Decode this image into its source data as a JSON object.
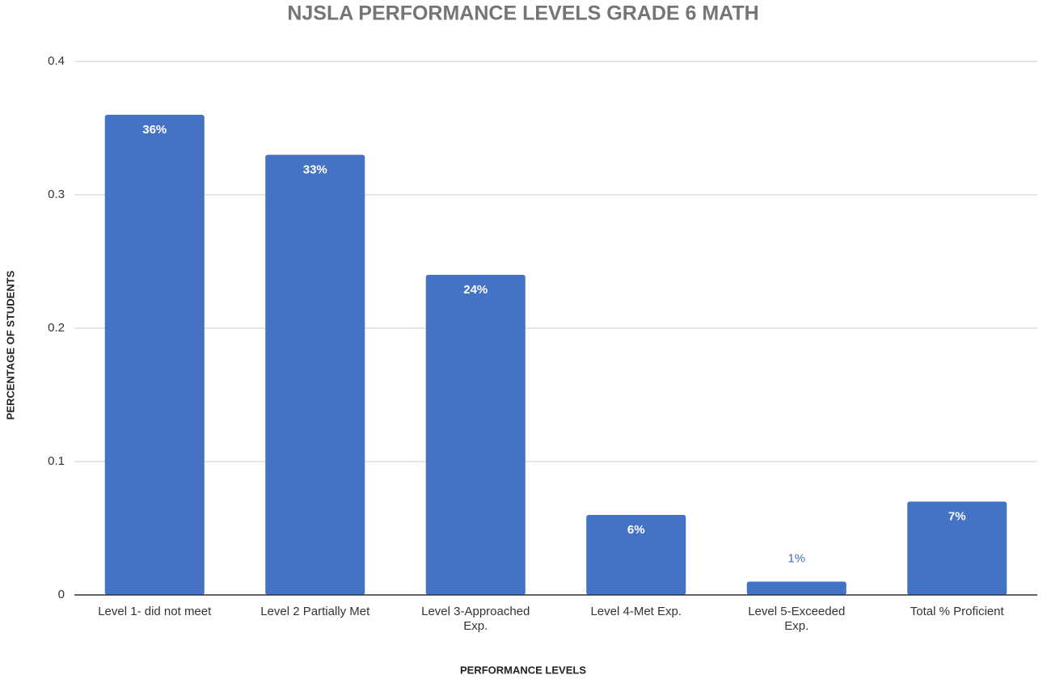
{
  "chart_data": {
    "type": "bar",
    "title": "NJSLA PERFORMANCE LEVELS GRADE 6 MATH",
    "x_label": "PERFORMANCE LEVELS",
    "y_label": "PERCENTAGE OF STUDENTS",
    "categories": [
      "Level 1- did not meet",
      "Level 2 Partially Met",
      "Level 3-Approached Exp.",
      "Level 4-Met Exp.",
      "Level 5-Exceeded Exp.",
      "Total % Proficient"
    ],
    "values": [
      0.36,
      0.33,
      0.24,
      0.06,
      0.01,
      0.07
    ],
    "value_labels": [
      "36%",
      "33%",
      "24%",
      "6%",
      "1%",
      "7%"
    ],
    "color": "#4472c4",
    "ylim": [
      0,
      0.4
    ],
    "yticks": [
      0,
      0.1,
      0.2,
      0.3,
      0.4
    ],
    "grid": true
  }
}
